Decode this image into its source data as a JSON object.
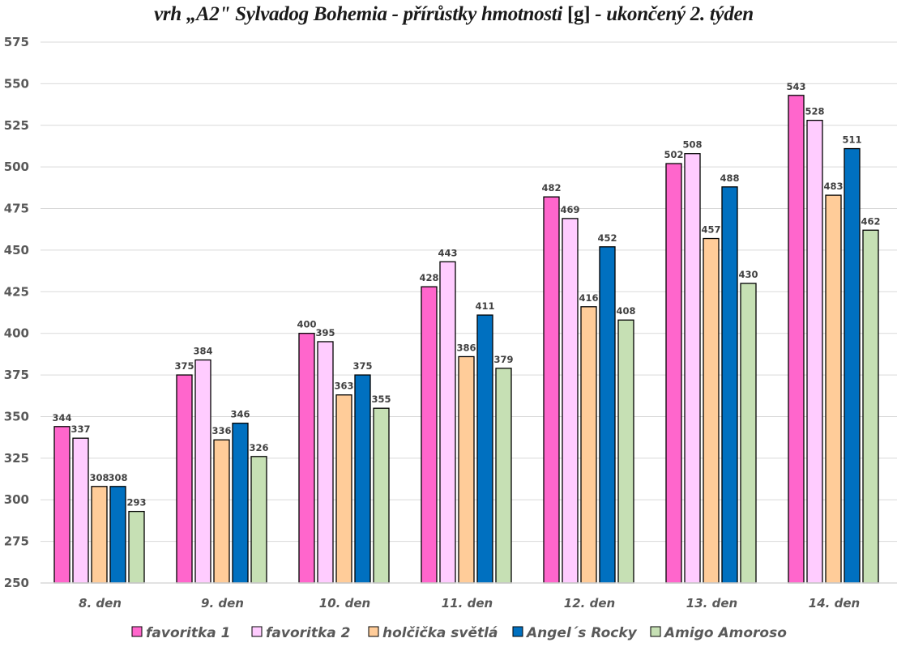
{
  "chart_data": {
    "type": "bar",
    "title_parts": [
      {
        "text": "vrh „A2\" Sylvadog Bohemia - přírůstky hmotnosti ",
        "style": "italic"
      },
      {
        "text": "[g]",
        "style": "upright"
      },
      {
        "text": " - ukončený 2. týden",
        "style": "italic"
      }
    ],
    "title": "vrh „A2\" Sylvadog Bohemia - přírůstky hmotnosti [g] - ukončený 2. týden",
    "xlabel": "",
    "ylabel": "",
    "ylim": [
      250,
      575
    ],
    "ytick_step": 25,
    "grid": true,
    "legend_position": "bottom",
    "categories": [
      "8. den",
      "9. den",
      "10. den",
      "11. den",
      "12. den",
      "13. den",
      "14. den"
    ],
    "series": [
      {
        "name": "favoritka 1",
        "color": "#FF66CC",
        "values": [
          344,
          375,
          400,
          428,
          482,
          502,
          543
        ]
      },
      {
        "name": "favoritka 2",
        "color": "#FFCCFF",
        "values": [
          337,
          384,
          395,
          443,
          469,
          508,
          528
        ]
      },
      {
        "name": "holčička světlá",
        "color": "#FFCC99",
        "values": [
          308,
          336,
          363,
          386,
          416,
          457,
          483
        ]
      },
      {
        "name": "Angel´s Rocky",
        "color": "#0070C0",
        "values": [
          308,
          346,
          375,
          411,
          452,
          488,
          511
        ]
      },
      {
        "name": "Amigo Amoroso",
        "color": "#C6E0B4",
        "values": [
          293,
          326,
          355,
          379,
          408,
          430,
          462
        ]
      }
    ]
  }
}
